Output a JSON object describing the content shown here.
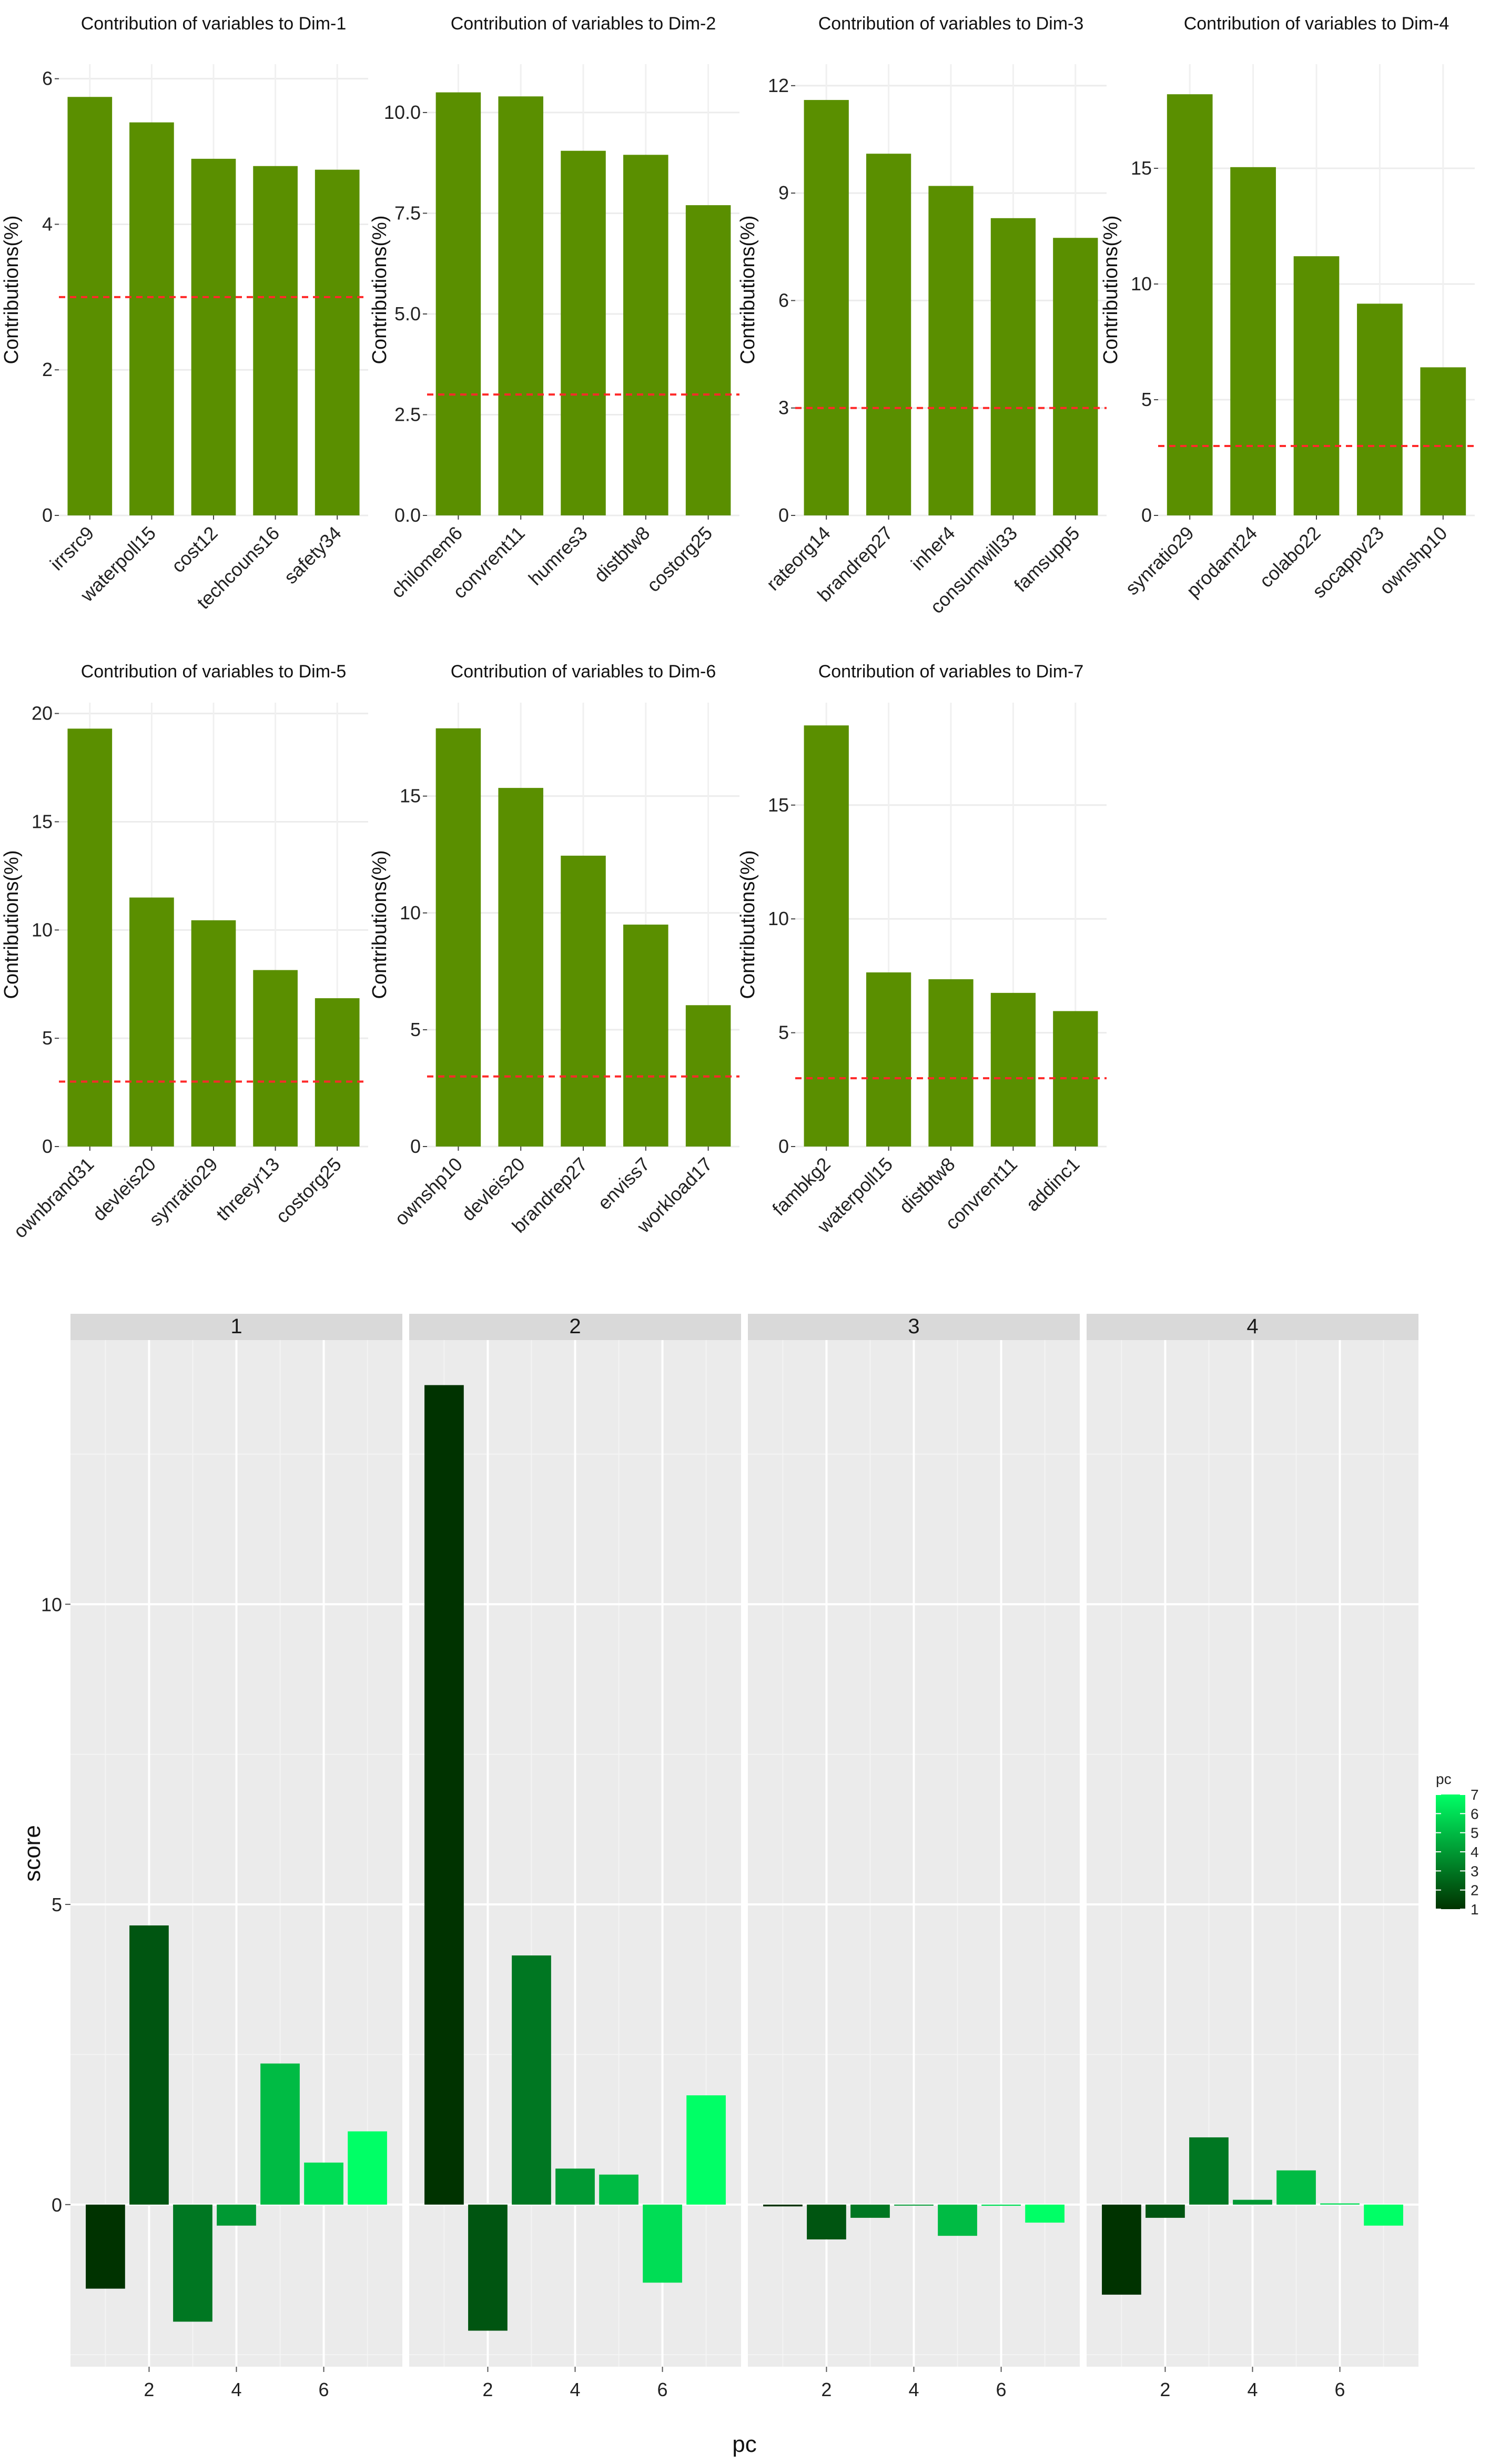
{
  "chart_data": [
    {
      "type": "bar",
      "title": "Contribution of variables to Dim-1",
      "ylabel": "Contributions(%)",
      "categories": [
        "irrsrc9",
        "waterpoll15",
        "cost12",
        "techcouns16",
        "safety34"
      ],
      "values": [
        5.75,
        5.4,
        4.9,
        4.8,
        4.75
      ],
      "ylim": [
        0,
        6.2
      ],
      "yticks": [
        0,
        2,
        4,
        6
      ],
      "yticklabels": [
        "0",
        "2",
        "4",
        "6"
      ],
      "reference_line": 3.0,
      "bar_color": "#5a8f00",
      "reference_color": "#ff2a2a"
    },
    {
      "type": "bar",
      "title": "Contribution of variables to Dim-2",
      "ylabel": "Contributions(%)",
      "categories": [
        "chilomem6",
        "convrent11",
        "humres3",
        "distbtw8",
        "costorg25"
      ],
      "values": [
        10.5,
        10.4,
        9.05,
        8.95,
        7.7
      ],
      "ylim": [
        0,
        11.2
      ],
      "yticks": [
        0,
        2.5,
        5,
        7.5,
        10
      ],
      "yticklabels": [
        "0.0",
        "2.5",
        "5.0",
        "7.5",
        "10.0"
      ],
      "reference_line": 3.0,
      "bar_color": "#5a8f00",
      "reference_color": "#ff2a2a"
    },
    {
      "type": "bar",
      "title": "Contribution of variables to Dim-3",
      "ylabel": "Contributions(%)",
      "categories": [
        "rateorg14",
        "brandrep27",
        "inher4",
        "consumwill33",
        "famsupp5"
      ],
      "values": [
        11.6,
        10.1,
        9.2,
        8.3,
        7.75
      ],
      "ylim": [
        0,
        12.6
      ],
      "yticks": [
        0,
        3,
        6,
        9,
        12
      ],
      "yticklabels": [
        "0",
        "3",
        "6",
        "9",
        "12"
      ],
      "reference_line": 3.0,
      "bar_color": "#5a8f00",
      "reference_color": "#ff2a2a"
    },
    {
      "type": "bar",
      "title": "Contribution of variables to Dim-4",
      "ylabel": "Contributions(%)",
      "categories": [
        "synratio29",
        "prodamt24",
        "colabo22",
        "socappv23",
        "ownshp10"
      ],
      "values": [
        18.2,
        15.05,
        11.2,
        9.15,
        6.4
      ],
      "ylim": [
        0,
        19.5
      ],
      "yticks": [
        0,
        5,
        10,
        15
      ],
      "yticklabels": [
        "0",
        "5",
        "10",
        "15"
      ],
      "reference_line": 3.0,
      "bar_color": "#5a8f00",
      "reference_color": "#ff2a2a"
    },
    {
      "type": "bar",
      "title": "Contribution of variables to Dim-5",
      "ylabel": "Contributions(%)",
      "categories": [
        "ownbrand31",
        "devleis20",
        "synratio29",
        "threeyr13",
        "costorg25"
      ],
      "values": [
        19.3,
        11.5,
        10.45,
        8.15,
        6.85
      ],
      "ylim": [
        0,
        20.5
      ],
      "yticks": [
        0,
        5,
        10,
        15,
        20
      ],
      "yticklabels": [
        "0",
        "5",
        "10",
        "15",
        "20"
      ],
      "reference_line": 3.0,
      "bar_color": "#5a8f00",
      "reference_color": "#ff2a2a"
    },
    {
      "type": "bar",
      "title": "Contribution of variables to Dim-6",
      "ylabel": "Contributions(%)",
      "categories": [
        "ownshp10",
        "devleis20",
        "brandrep27",
        "enviss7",
        "workload17"
      ],
      "values": [
        17.9,
        15.35,
        12.45,
        9.5,
        6.05
      ],
      "ylim": [
        0,
        19.0
      ],
      "yticks": [
        0,
        5,
        10,
        15
      ],
      "yticklabels": [
        "0",
        "5",
        "10",
        "15"
      ],
      "reference_line": 3.0,
      "bar_color": "#5a8f00",
      "reference_color": "#ff2a2a"
    },
    {
      "type": "bar",
      "title": "Contribution of variables to Dim-7",
      "ylabel": "Contributions(%)",
      "categories": [
        "fambkg2",
        "waterpoll15",
        "distbtw8",
        "convrent11",
        "addinc1"
      ],
      "values": [
        18.5,
        7.65,
        7.35,
        6.75,
        5.95
      ],
      "ylim": [
        0,
        19.5
      ],
      "yticks": [
        0,
        5,
        10,
        15
      ],
      "yticklabels": [
        "0",
        "5",
        "10",
        "15"
      ],
      "reference_line": 3.0,
      "bar_color": "#5a8f00",
      "reference_color": "#ff2a2a"
    },
    {
      "type": "bar",
      "faceted": true,
      "xlabel": "pc",
      "ylabel": "score",
      "ylim": [
        -2.7,
        14.4
      ],
      "yticks": [
        0,
        5,
        10
      ],
      "yticklabels": [
        "0",
        "5",
        "10"
      ],
      "xlim": [
        0.2,
        7.8
      ],
      "xticks": [
        2,
        4,
        6
      ],
      "xticklabels": [
        "2",
        "4",
        "6"
      ],
      "x": [
        1,
        2,
        3,
        4,
        5,
        6,
        7
      ],
      "facets": [
        {
          "name": "1",
          "values": [
            -1.4,
            4.65,
            -1.95,
            -0.35,
            2.35,
            0.7,
            1.22
          ]
        },
        {
          "name": "2",
          "values": [
            13.65,
            -2.1,
            4.15,
            0.6,
            0.5,
            -1.3,
            1.82
          ]
        },
        {
          "name": "3",
          "values": [
            -0.03,
            -0.58,
            -0.22,
            0.0,
            -0.52,
            -0.02,
            -0.3
          ]
        },
        {
          "name": "4",
          "values": [
            -1.5,
            -0.22,
            1.12,
            0.08,
            0.57,
            0.02,
            -0.35
          ]
        }
      ],
      "legend": {
        "title": "pc",
        "placement": "right",
        "range": [
          1,
          7
        ],
        "ticks": [
          "1",
          "2",
          "3",
          "4",
          "5",
          "6",
          "7"
        ],
        "color_low": "#003300",
        "color_high": "#00ff66"
      },
      "panel_color": "#ebebeb",
      "strip_color": "#d9d9d9",
      "grid_color": "#ffffff"
    }
  ]
}
